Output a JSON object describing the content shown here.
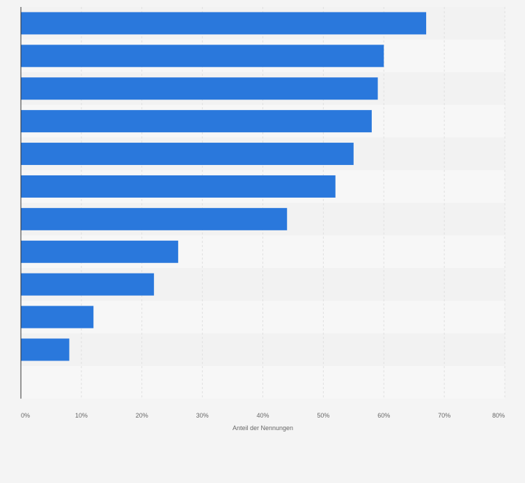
{
  "chart_data": {
    "type": "bar",
    "orientation": "horizontal",
    "categories": [
      "",
      "",
      "",
      "",
      "",
      "",
      "",
      "",
      "",
      "",
      ""
    ],
    "values": [
      67,
      60,
      59,
      58,
      55,
      52,
      44,
      26,
      22,
      12,
      8
    ],
    "xlabel": "Anteil der Nennungen",
    "ylabel": "",
    "xlim": [
      0,
      80
    ],
    "ticks": [
      "0%",
      "10%",
      "20%",
      "30%",
      "40%",
      "50%",
      "60%",
      "70%",
      "80%"
    ],
    "grid": true,
    "bar_color": "#2a78dc",
    "band_colors": [
      "#f2f2f2",
      "#f7f7f7"
    ],
    "grid_color": "#e0e0e0",
    "axis_color": "#333333",
    "text_color": "#666666"
  }
}
